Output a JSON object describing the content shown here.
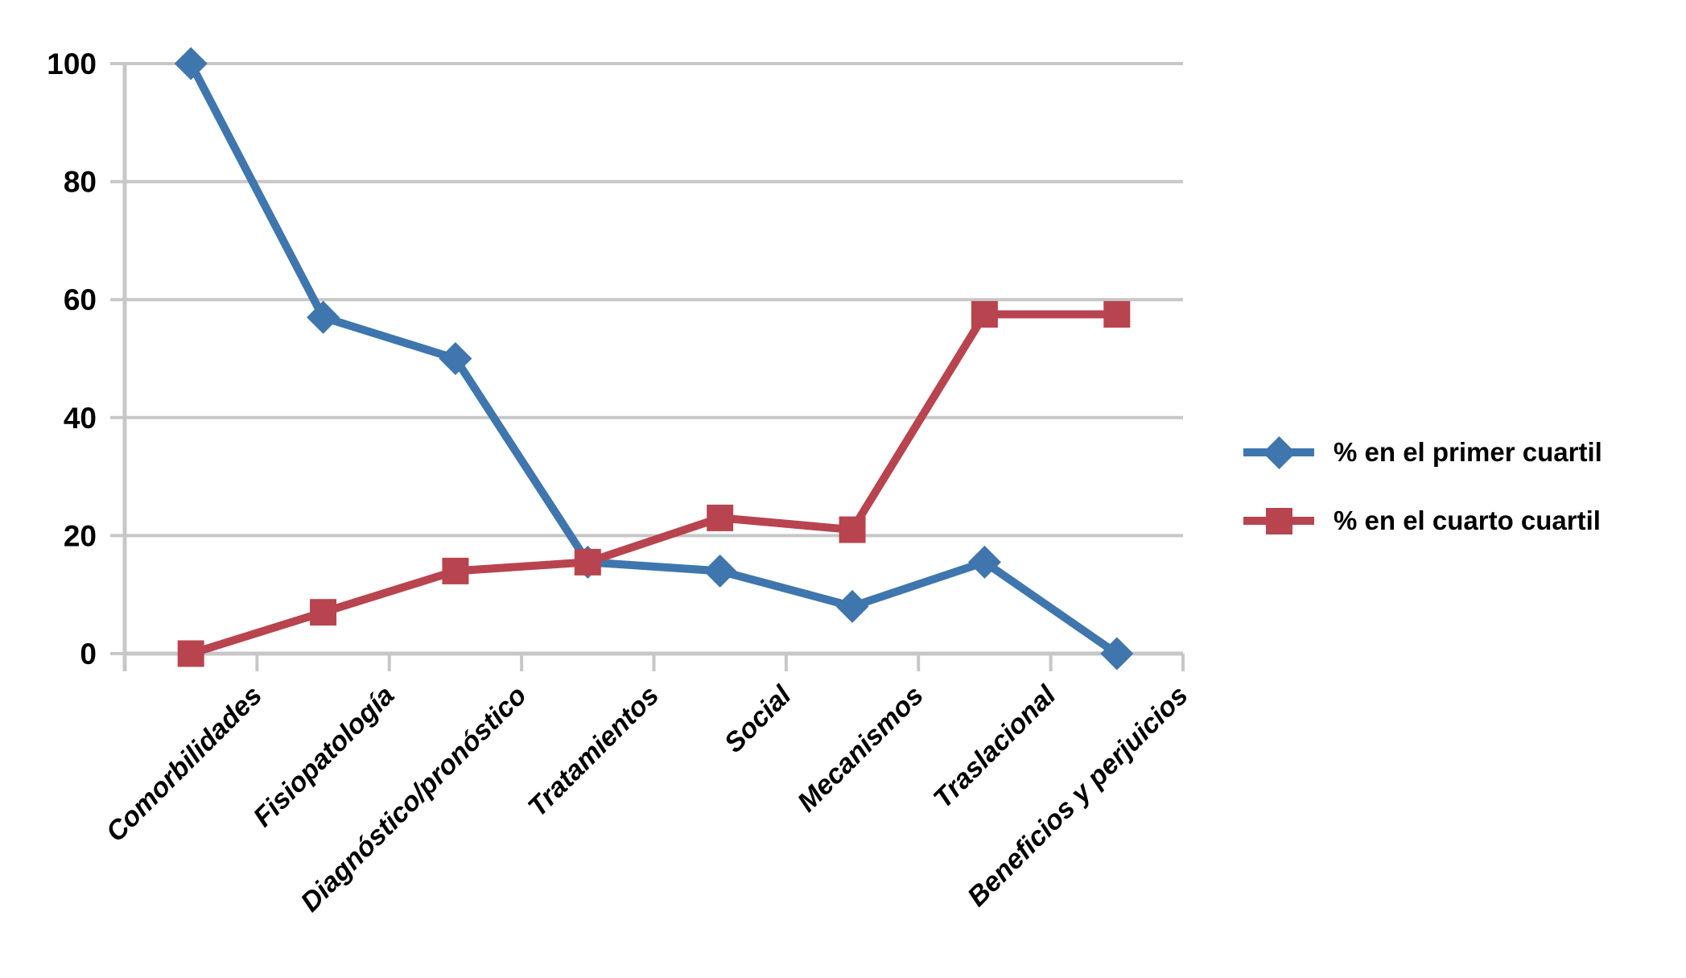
{
  "chart_data": {
    "type": "line",
    "title": "",
    "xlabel": "",
    "ylabel": "",
    "categories": [
      "Comorbilidades",
      "Fisiopatología",
      "Diagnóstico/pronóstico",
      "Tratamientos",
      "Social",
      "Mecanismos",
      "Traslacional",
      "Beneficios y perjuicios"
    ],
    "series": [
      {
        "name": "% en el primer cuartil",
        "marker": "diamond",
        "color": "#3F76AE",
        "values": [
          100,
          57,
          50,
          15.5,
          14,
          8,
          15.5,
          0
        ]
      },
      {
        "name": "% en el cuarto cuartil",
        "marker": "square",
        "color": "#B8444F",
        "values": [
          0,
          7,
          14,
          15.5,
          23,
          21,
          57.5,
          57.5
        ]
      }
    ],
    "ylim": [
      0,
      100
    ],
    "yticks": [
      0,
      20,
      40,
      60,
      80,
      100
    ],
    "grid": "horizontal",
    "legend_position": "right-middle",
    "gridline_color": "#C7C7C7",
    "axis_color": "#C7C7C7",
    "label_color": "#000000",
    "background": "#FFFFFF"
  },
  "legend": {
    "items": [
      {
        "label": "% en el primer cuartil",
        "color": "#3F76AE",
        "marker": "diamond"
      },
      {
        "label": "% en el cuarto cuartil",
        "color": "#B8444F",
        "marker": "square"
      }
    ]
  }
}
